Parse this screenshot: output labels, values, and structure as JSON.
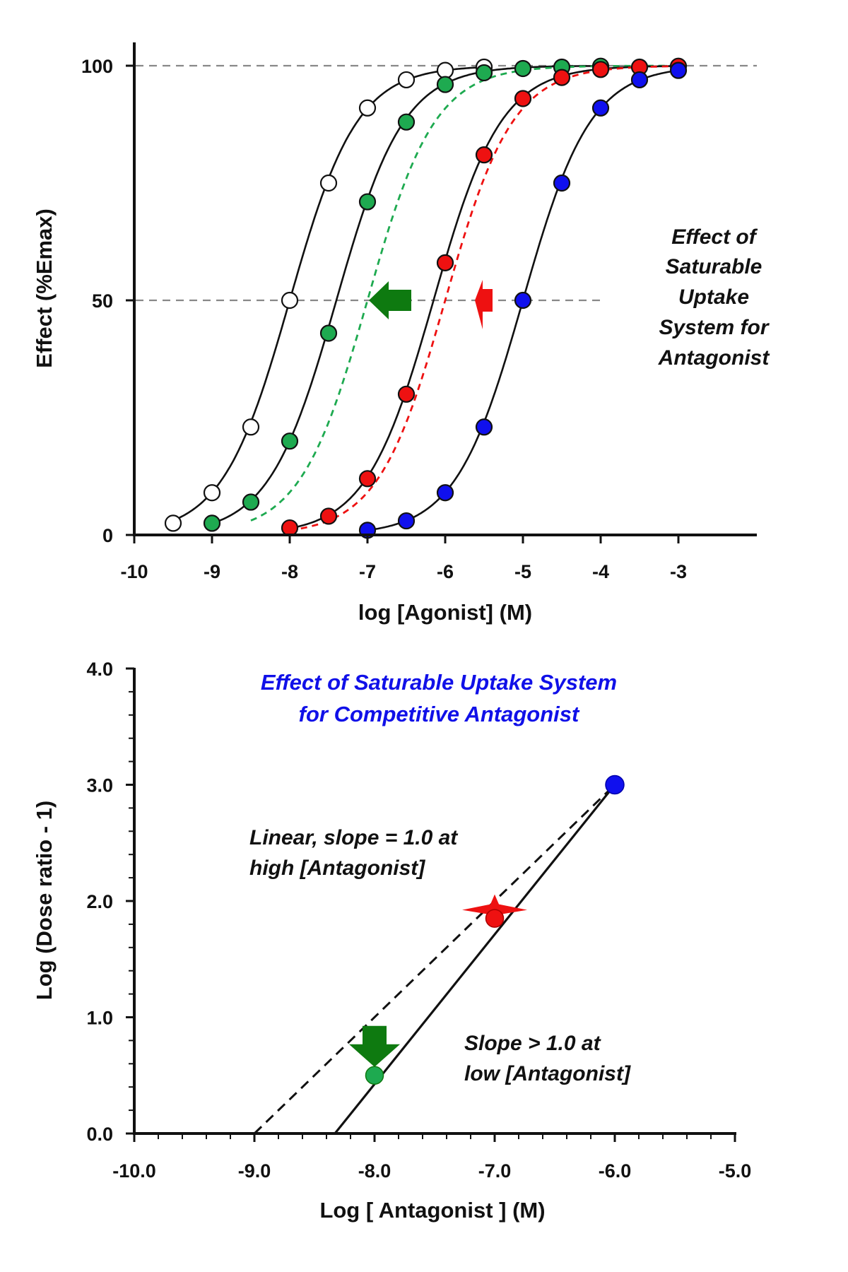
{
  "chart_data": [
    {
      "type": "line",
      "xlabel": "log [Agonist] (M)",
      "ylabel": "Effect (%Emax)",
      "xlim": [
        -10,
        -3
      ],
      "ylim": [
        0,
        100
      ],
      "x_ticks": [
        -10,
        -9,
        -8,
        -7,
        -6,
        -5,
        -4,
        -3
      ],
      "y_ticks": [
        0,
        50,
        100
      ],
      "reference_lines_y": [
        50,
        100
      ],
      "annotation": [
        "Effect of",
        "Saturable",
        "Uptake",
        "System for",
        "Antagonist"
      ],
      "series": [
        {
          "color": "#ffffff",
          "style": "solid",
          "ec50_log": -8.0,
          "x": [
            -9.5,
            -9.0,
            -8.5,
            -8.0,
            -7.5,
            -7.0,
            -6.5,
            -6.0,
            -5.5
          ],
          "y": [
            2.5,
            9,
            23,
            50,
            75,
            91,
            97,
            99,
            99.7
          ]
        },
        {
          "color": "#1eaa50",
          "style": "solid",
          "ec50_log": -7.4,
          "x": [
            -9.0,
            -8.5,
            -8.0,
            -7.5,
            -7.0,
            -6.5,
            -6.0,
            -5.5,
            -5.0,
            -4.5,
            -4.0
          ],
          "y": [
            2.5,
            7,
            20,
            43,
            71,
            88,
            96,
            98.5,
            99.4,
            99.7,
            99.9
          ]
        },
        {
          "color": "#1eaa50",
          "style": "dashed",
          "ec50_log": -7.0,
          "x_range": [
            -8.5,
            -3.0
          ]
        },
        {
          "color": "#ee1111",
          "style": "solid",
          "ec50_log": -6.15,
          "x": [
            -8.0,
            -7.5,
            -7.0,
            -6.5,
            -6.0,
            -5.5,
            -5.0,
            -4.5,
            -4.0,
            -3.5,
            -3.0
          ],
          "y": [
            1.5,
            4,
            12,
            30,
            58,
            81,
            93,
            97.5,
            99.2,
            99.7,
            99.9
          ]
        },
        {
          "color": "#ee1111",
          "style": "dashed",
          "ec50_log": -6.0,
          "x_range": [
            -8.0,
            -3.0
          ]
        },
        {
          "color": "#1010ee",
          "style": "solid",
          "ec50_log": -5.0,
          "x": [
            -7.0,
            -6.5,
            -6.0,
            -5.5,
            -5.0,
            -4.5,
            -4.0,
            -3.5,
            -3.0
          ],
          "y": [
            1,
            3,
            9,
            23,
            50,
            75,
            91,
            97,
            99
          ]
        }
      ]
    },
    {
      "type": "scatter",
      "title": [
        "Effect of Saturable Uptake System",
        "for Competitive Antagonist"
      ],
      "xlabel": "Log [ Antagonist ]  (M)",
      "ylabel": "Log (Dose ratio - 1)",
      "xlim": [
        -10.0,
        -5.0
      ],
      "ylim": [
        0.0,
        4.0
      ],
      "x_ticks": [
        "-10.0",
        "-9.0",
        "-8.0",
        "-7.0",
        "-6.0",
        "-5.0"
      ],
      "y_ticks": [
        "0.0",
        "1.0",
        "2.0",
        "3.0",
        "4.0"
      ],
      "points": [
        {
          "x": -8.0,
          "y": 0.5,
          "color": "#1eaa50"
        },
        {
          "x": -7.0,
          "y": 1.85,
          "color": "#ee1111"
        },
        {
          "x": -6.0,
          "y": 3.0,
          "color": "#1010ee"
        }
      ],
      "lines": [
        {
          "style": "dashed",
          "x": [
            -9.0,
            -6.0
          ],
          "y": [
            0.0,
            3.0
          ]
        },
        {
          "style": "solid",
          "x": [
            -8.33,
            -6.0
          ],
          "y": [
            0.0,
            3.0
          ]
        }
      ],
      "annotations": [
        [
          "Linear, slope = 1.0 at",
          "high [Antagonist]"
        ],
        [
          "Slope > 1.0 at",
          "low [Antagonist]"
        ]
      ]
    }
  ]
}
